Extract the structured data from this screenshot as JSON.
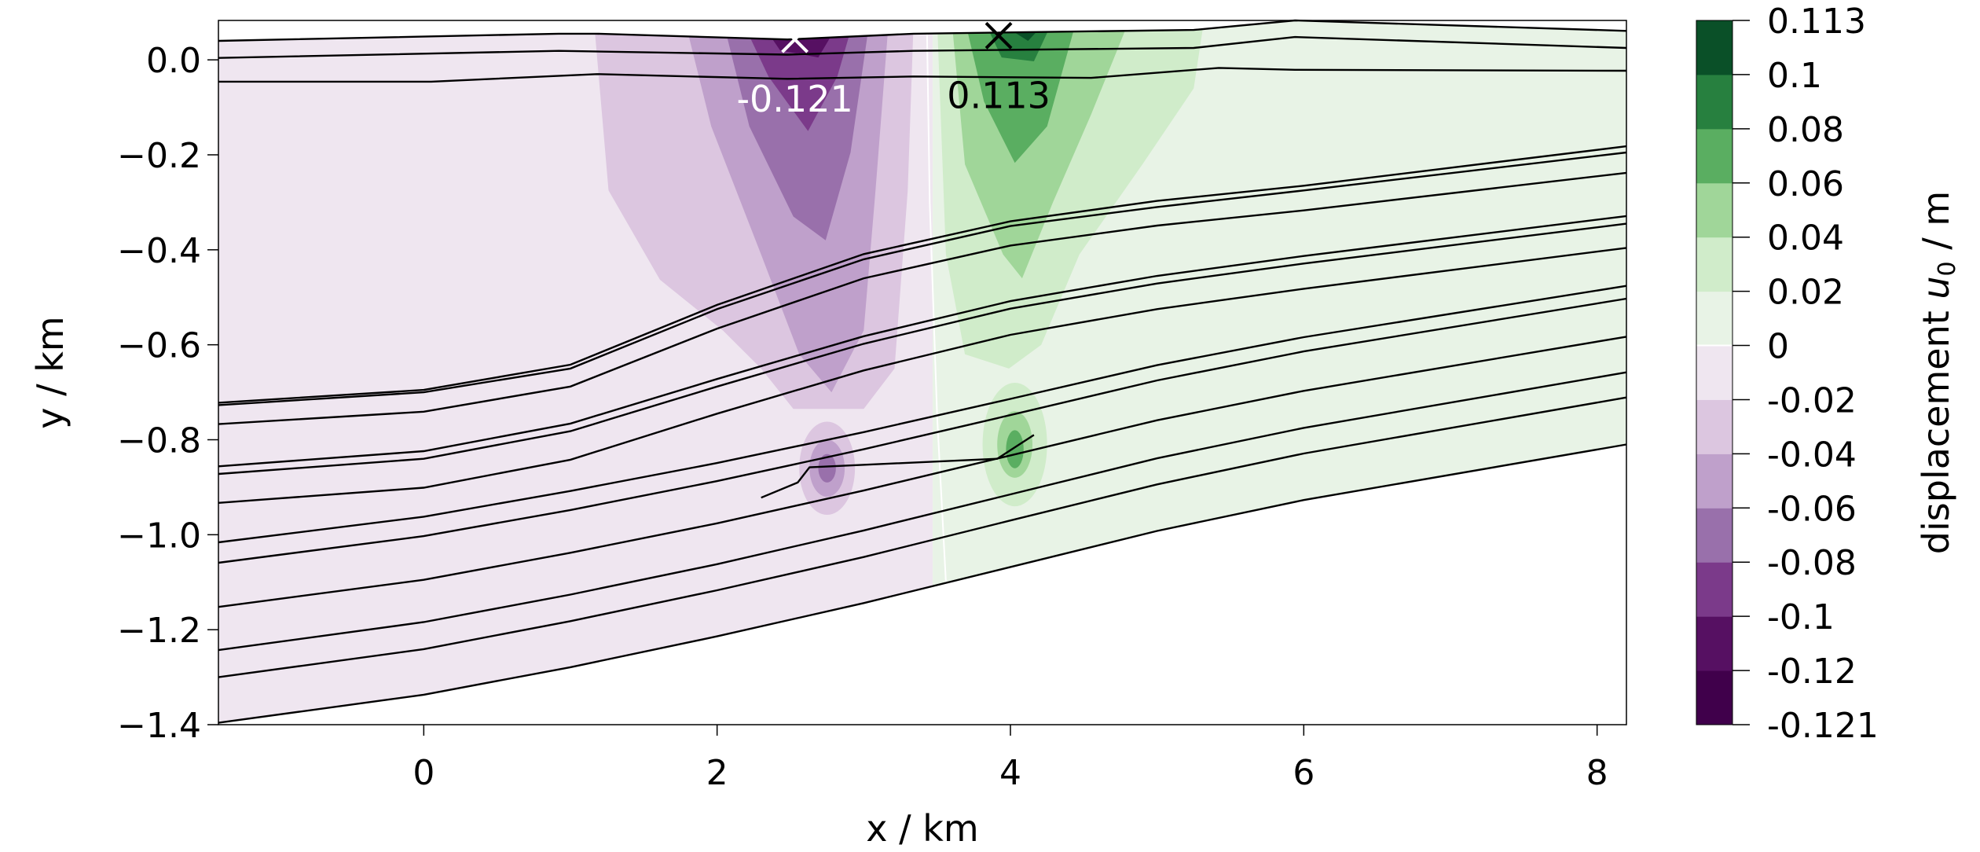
{
  "chart_data": {
    "type": "contour",
    "xlabel": "x / km",
    "ylabel": "y / km",
    "xlim": [
      -1.4,
      8.2
    ],
    "ylim": [
      -1.4,
      0.083
    ],
    "x_ticks": [
      "0",
      "2",
      "4",
      "6",
      "8"
    ],
    "x_tick_values": [
      0,
      2,
      4,
      6,
      8
    ],
    "y_ticks": [
      "0.0",
      "−0.2",
      "−0.4",
      "−0.6",
      "−0.8",
      "−1.0",
      "−1.2",
      "−1.4"
    ],
    "y_tick_values": [
      0,
      -0.2,
      -0.4,
      -0.6,
      -0.8,
      -1.0,
      -1.2,
      -1.4
    ],
    "grid": false,
    "colorbar": {
      "label_prefix": "displacement ",
      "label_symbol": "u",
      "label_subscript": "0",
      "label_suffix": " / m",
      "levels": [
        -0.121,
        -0.12,
        -0.1,
        -0.08,
        -0.06,
        -0.04,
        -0.02,
        0,
        0.02,
        0.04,
        0.06,
        0.08,
        0.1,
        0.113
      ],
      "tick_labels": [
        "-0.121",
        "-0.12",
        "-0.1",
        "-0.08",
        "-0.06",
        "-0.04",
        "-0.02",
        "0",
        "0.02",
        "0.04",
        "0.06",
        "0.08",
        "0.1",
        "0.113"
      ],
      "colors": [
        "#40004b",
        "#561062",
        "#7b3a8a",
        "#9970ab",
        "#bfa0cb",
        "#dcc6e0",
        "#efe6f0",
        "#e8f3e6",
        "#d0ecca",
        "#a0d699",
        "#5aae61",
        "#27803f",
        "#0a5028"
      ]
    },
    "annotations": [
      {
        "label": "-0.121",
        "x": 2.53,
        "y": 0.043,
        "marker": "x",
        "color": "#ffffff"
      },
      {
        "label": "0.113",
        "x": 3.92,
        "y": 0.051,
        "marker": "x",
        "color": "#000000"
      }
    ],
    "layer_x": [
      -1.4,
      0,
      1,
      2,
      3,
      4,
      5,
      6,
      8.2
    ],
    "surface_lines": [
      {
        "x": [
          -1.4,
          0.92,
          1.18,
          2.48,
          3.34,
          5.25,
          5.94,
          8.2
        ],
        "y": [
          0.04,
          0.055,
          0.055,
          0.043,
          0.055,
          0.063,
          0.083,
          0.061
        ]
      },
      {
        "x": [
          -1.4,
          0.92,
          2.48,
          3.34,
          5.25,
          5.94,
          8.2
        ],
        "y": [
          0.004,
          0.019,
          0.011,
          0.019,
          0.025,
          0.048,
          0.025
        ]
      },
      {
        "x": [
          -1.4,
          0.05,
          1.18,
          2.48,
          3.34,
          4.55,
          5.42,
          5.94,
          8.2
        ],
        "y": [
          -0.046,
          -0.046,
          -0.03,
          -0.04,
          -0.035,
          -0.038,
          -0.017,
          -0.021,
          -0.023
        ]
      }
    ],
    "layer_lines": [
      [
        -0.722,
        -0.695,
        -0.642,
        -0.516,
        -0.409,
        -0.34,
        -0.297,
        -0.265,
        -0.182
      ],
      [
        -0.727,
        -0.7,
        -0.65,
        -0.525,
        -0.42,
        -0.35,
        -0.31,
        -0.275,
        -0.195
      ],
      [
        -0.767,
        -0.741,
        -0.688,
        -0.566,
        -0.46,
        -0.391,
        -0.349,
        -0.317,
        -0.238
      ],
      [
        -0.856,
        -0.824,
        -0.766,
        -0.672,
        -0.582,
        -0.508,
        -0.455,
        -0.413,
        -0.329
      ],
      [
        -0.872,
        -0.84,
        -0.782,
        -0.688,
        -0.598,
        -0.524,
        -0.471,
        -0.429,
        -0.345
      ],
      [
        -0.933,
        -0.901,
        -0.842,
        -0.745,
        -0.654,
        -0.579,
        -0.525,
        -0.482,
        -0.396
      ],
      [
        -1.016,
        -0.962,
        -0.908,
        -0.849,
        -0.784,
        -0.714,
        -0.643,
        -0.584,
        -0.476
      ],
      [
        -1.059,
        -1.003,
        -0.948,
        -0.887,
        -0.82,
        -0.748,
        -0.675,
        -0.614,
        -0.503
      ],
      [
        -1.152,
        -1.095,
        -1.038,
        -0.976,
        -0.907,
        -0.833,
        -0.759,
        -0.697,
        -0.583
      ],
      [
        -1.243,
        -1.184,
        -1.126,
        -1.062,
        -0.991,
        -0.915,
        -0.839,
        -0.775,
        -0.658
      ],
      [
        -1.3,
        -1.241,
        -1.182,
        -1.117,
        -1.047,
        -0.97,
        -0.894,
        -0.829,
        -0.711
      ],
      [
        -1.396,
        -1.337,
        -1.279,
        -1.214,
        -1.144,
        -1.068,
        -0.992,
        -0.927,
        -0.81
      ]
    ],
    "fault_line": {
      "x": [
        2.3,
        2.55,
        2.63,
        3.91,
        4.16
      ],
      "y": [
        -0.922,
        -0.89,
        -0.858,
        -0.84,
        -0.79
      ]
    },
    "zero_contour": {
      "x": [
        3.43,
        3.45,
        3.5,
        3.56
      ],
      "y": [
        0.083,
        -0.3,
        -0.75,
        -1.1
      ]
    },
    "regions": [
      {
        "level": 5,
        "x": [
          1.16,
          1.26,
          1.61,
          2.04,
          2.3,
          2.52,
          3.0,
          3.21,
          3.3,
          3.34
        ],
        "y": [
          0.083,
          -0.275,
          -0.463,
          -0.57,
          -0.65,
          -0.735,
          -0.735,
          -0.65,
          -0.275,
          0.083
        ]
      },
      {
        "level": 4,
        "x": [
          1.78,
          1.96,
          2.3,
          2.56,
          2.78,
          3.0,
          3.08,
          3.17
        ],
        "y": [
          0.083,
          -0.14,
          -0.41,
          -0.62,
          -0.7,
          -0.57,
          -0.275,
          0.083
        ]
      },
      {
        "level": 3,
        "x": [
          2.04,
          2.22,
          2.52,
          2.74,
          2.91,
          3.04
        ],
        "y": [
          0.083,
          -0.14,
          -0.33,
          -0.38,
          -0.195,
          0.083
        ]
      },
      {
        "level": 2,
        "x": [
          2.17,
          2.35,
          2.62,
          2.82,
          2.93
        ],
        "y": [
          0.083,
          -0.035,
          -0.15,
          -0.035,
          0.083
        ]
      },
      {
        "level": 1,
        "x": [
          2.29,
          2.43,
          2.69,
          2.84
        ],
        "y": [
          0.083,
          0.02,
          0.005,
          0.083
        ]
      },
      {
        "level": 0,
        "x": [
          2.43,
          2.65,
          2.78
        ],
        "y": [
          0.083,
          0.045,
          0.083
        ]
      },
      {
        "level": 8,
        "x": [
          3.5,
          3.56,
          3.69,
          3.99,
          4.21,
          4.47,
          4.9,
          5.25,
          5.32
        ],
        "y": [
          0.083,
          -0.41,
          -0.62,
          -0.65,
          -0.6,
          -0.41,
          -0.22,
          -0.06,
          0.083
        ]
      },
      {
        "level": 9,
        "x": [
          3.6,
          3.69,
          3.95,
          4.08,
          4.29,
          4.55,
          4.81
        ],
        "y": [
          0.083,
          -0.22,
          -0.41,
          -0.46,
          -0.3,
          -0.115,
          0.083
        ]
      },
      {
        "level": 10,
        "x": [
          3.69,
          3.82,
          4.03,
          4.25,
          4.45
        ],
        "y": [
          0.083,
          -0.088,
          -0.217,
          -0.14,
          0.083
        ]
      },
      {
        "level": 11,
        "x": [
          3.82,
          3.94,
          4.16,
          4.29
        ],
        "y": [
          0.083,
          0.005,
          -0.003,
          0.083
        ]
      },
      {
        "level": 12,
        "x": [
          3.9,
          4.12,
          4.25
        ],
        "y": [
          0.083,
          0.04,
          0.083
        ]
      }
    ],
    "blobs": [
      {
        "level": 5,
        "cx": 2.75,
        "cy": -0.86,
        "rx": 0.19,
        "ry": 0.098
      },
      {
        "level": 4,
        "cx": 2.75,
        "cy": -0.86,
        "rx": 0.12,
        "ry": 0.06
      },
      {
        "level": 3,
        "cx": 2.75,
        "cy": -0.86,
        "rx": 0.06,
        "ry": 0.03
      },
      {
        "level": 8,
        "cx": 4.03,
        "cy": -0.81,
        "rx": 0.22,
        "ry": 0.13
      },
      {
        "level": 9,
        "cx": 4.03,
        "cy": -0.81,
        "rx": 0.12,
        "ry": 0.07
      },
      {
        "level": 10,
        "cx": 4.03,
        "cy": -0.82,
        "rx": 0.06,
        "ry": 0.04
      }
    ]
  }
}
